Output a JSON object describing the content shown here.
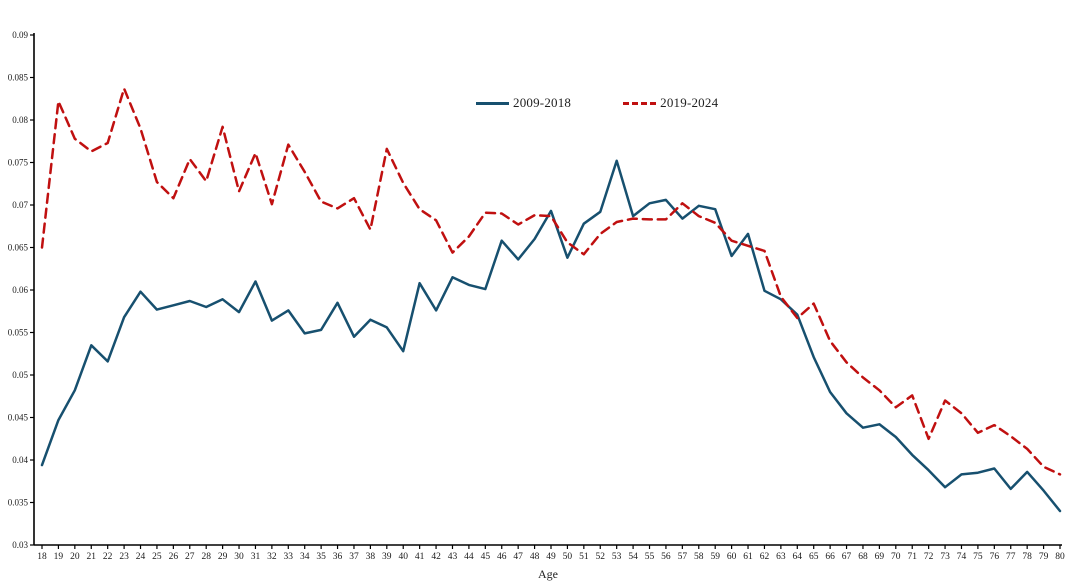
{
  "figure": {
    "background": "#ffffff",
    "axis_color": "#000000",
    "text_color": "#1a1a1a"
  },
  "chart_data": {
    "type": "line",
    "title": "",
    "xlabel": "Age",
    "ylabel": "",
    "ylim": [
      0.03,
      0.09
    ],
    "ytick_step": 0.005,
    "ytick_labels": [
      "0.03",
      "0.035",
      "0.04",
      "0.045",
      "0.05",
      "0.055",
      "0.06",
      "0.065",
      "0.07",
      "0.075",
      "0.08",
      "0.085",
      "0.09"
    ],
    "grid": false,
    "legend_position": "top-center",
    "x": [
      18,
      19,
      20,
      21,
      22,
      23,
      24,
      25,
      26,
      27,
      28,
      29,
      30,
      31,
      32,
      33,
      34,
      35,
      36,
      37,
      38,
      39,
      40,
      41,
      42,
      43,
      44,
      45,
      46,
      47,
      48,
      49,
      50,
      51,
      52,
      53,
      54,
      55,
      56,
      57,
      58,
      59,
      60,
      61,
      62,
      63,
      64,
      65,
      66,
      67,
      68,
      69,
      70,
      71,
      72,
      73,
      74,
      75,
      76,
      77,
      78,
      79,
      80
    ],
    "series": [
      {
        "name": "2009-2018",
        "color": "#17506f",
        "style": "solid",
        "values": [
          0.0394,
          0.0447,
          0.0482,
          0.0535,
          0.0516,
          0.0568,
          0.0598,
          0.0577,
          0.0582,
          0.0587,
          0.058,
          0.0589,
          0.0574,
          0.061,
          0.0564,
          0.0576,
          0.0549,
          0.0553,
          0.0585,
          0.0545,
          0.0565,
          0.0556,
          0.0528,
          0.0608,
          0.0576,
          0.0615,
          0.0606,
          0.0601,
          0.0658,
          0.0636,
          0.066,
          0.0693,
          0.0638,
          0.0678,
          0.0692,
          0.0752,
          0.0687,
          0.0702,
          0.0706,
          0.0684,
          0.0699,
          0.0695,
          0.064,
          0.0666,
          0.0599,
          0.0589,
          0.0571,
          0.0521,
          0.048,
          0.0455,
          0.0438,
          0.0442,
          0.0427,
          0.0406,
          0.0388,
          0.0368,
          0.0383,
          0.0385,
          0.039,
          0.0366,
          0.0386,
          0.0364,
          0.034
        ]
      },
      {
        "name": "2019-2024",
        "color": "#c01010",
        "style": "dashed",
        "values": [
          0.065,
          0.0822,
          0.0778,
          0.0763,
          0.0773,
          0.0837,
          0.079,
          0.0727,
          0.0708,
          0.0754,
          0.0728,
          0.0792,
          0.0716,
          0.0761,
          0.0701,
          0.0771,
          0.0739,
          0.0704,
          0.0696,
          0.0708,
          0.0671,
          0.0766,
          0.0726,
          0.0695,
          0.0682,
          0.0644,
          0.0663,
          0.0691,
          0.069,
          0.0677,
          0.0688,
          0.0687,
          0.0656,
          0.0642,
          0.0666,
          0.068,
          0.0684,
          0.0683,
          0.0683,
          0.0702,
          0.0687,
          0.0679,
          0.0658,
          0.0652,
          0.0646,
          0.0592,
          0.0567,
          0.0584,
          0.054,
          0.0515,
          0.0497,
          0.0482,
          0.0462,
          0.0476,
          0.0425,
          0.047,
          0.0455,
          0.0432,
          0.0441,
          0.0428,
          0.0413,
          0.0392,
          0.0383
        ]
      }
    ]
  }
}
